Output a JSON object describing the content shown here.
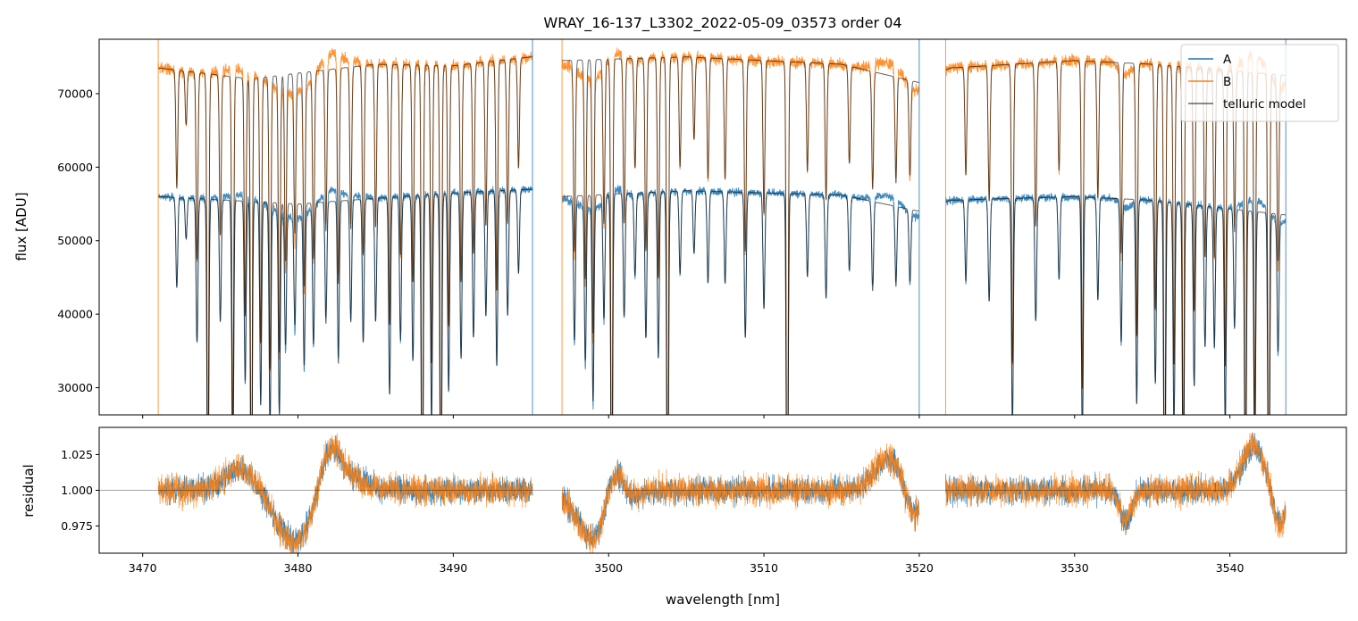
{
  "chart_data": [
    {
      "type": "line",
      "panel": "spectrum",
      "title": "WRAY_16-137_L3302_2022-05-09_03573  order 04",
      "xlabel": "",
      "ylabel": "flux [ADU]",
      "xlim": [
        3467.2,
        3547.5
      ],
      "ylim": [
        26300,
        77400
      ],
      "x_ticks": [
        3470,
        3480,
        3490,
        3500,
        3510,
        3520,
        3530,
        3540
      ],
      "y_ticks": [
        30000,
        40000,
        50000,
        60000,
        70000
      ],
      "y_tick_labels": [
        "30000",
        "40000",
        "50000",
        "60000",
        "70000"
      ],
      "grid": false,
      "legend_position": "top-right",
      "legend": [
        "A",
        "B",
        "telluric model"
      ],
      "segments_nm": [
        [
          3471.0,
          3495.1
        ],
        [
          3497.0,
          3520.0
        ],
        [
          3521.7,
          3543.6
        ]
      ],
      "continuum": {
        "A": {
          "x": [
            3471,
            3480,
            3490,
            3495,
            3497,
            3505,
            3515,
            3520,
            3522,
            3530,
            3535,
            3543.6
          ],
          "y": [
            56000,
            55000,
            56500,
            57000,
            56000,
            56800,
            56200,
            54000,
            55500,
            56000,
            55500,
            53500
          ]
        },
        "B": {
          "x": [
            3471,
            3477,
            3480,
            3485,
            3490,
            3495,
            3497,
            3505,
            3515,
            3520,
            3522,
            3530,
            3535,
            3543.6
          ],
          "y": [
            73500,
            72000,
            72800,
            74000,
            73800,
            75000,
            74500,
            75000,
            74000,
            71500,
            73500,
            74500,
            74000,
            72500
          ]
        }
      },
      "absorption_lines_nm": [
        [
          3472.2,
          0.22
        ],
        [
          3472.8,
          0.1
        ],
        [
          3473.5,
          0.35
        ],
        [
          3474.2,
          0.8
        ],
        [
          3475.0,
          0.3
        ],
        [
          3475.8,
          0.7
        ],
        [
          3476.6,
          0.45
        ],
        [
          3477.0,
          0.85
        ],
        [
          3477.6,
          0.5
        ],
        [
          3478.2,
          0.55
        ],
        [
          3478.8,
          0.52
        ],
        [
          3479.2,
          0.35
        ],
        [
          3479.8,
          0.3
        ],
        [
          3480.4,
          0.4
        ],
        [
          3481.0,
          0.35
        ],
        [
          3481.8,
          0.3
        ],
        [
          3482.6,
          0.4
        ],
        [
          3483.4,
          0.3
        ],
        [
          3484.2,
          0.35
        ],
        [
          3485.0,
          0.3
        ],
        [
          3485.9,
          0.48
        ],
        [
          3486.6,
          0.35
        ],
        [
          3487.4,
          0.4
        ],
        [
          3488.0,
          0.9
        ],
        [
          3488.6,
          0.55
        ],
        [
          3489.2,
          0.85
        ],
        [
          3489.7,
          0.48
        ],
        [
          3490.5,
          0.4
        ],
        [
          3491.3,
          0.35
        ],
        [
          3492.1,
          0.3
        ],
        [
          3492.8,
          0.42
        ],
        [
          3493.5,
          0.3
        ],
        [
          3494.2,
          0.2
        ],
        [
          3497.8,
          0.35
        ],
        [
          3498.5,
          0.4
        ],
        [
          3499.0,
          0.5
        ],
        [
          3499.7,
          0.3
        ],
        [
          3500.2,
          0.85
        ],
        [
          3501.0,
          0.3
        ],
        [
          3501.7,
          0.2
        ],
        [
          3502.4,
          0.35
        ],
        [
          3503.2,
          0.4
        ],
        [
          3503.8,
          0.9
        ],
        [
          3504.6,
          0.2
        ],
        [
          3505.5,
          0.15
        ],
        [
          3506.4,
          0.22
        ],
        [
          3507.5,
          0.22
        ],
        [
          3508.8,
          0.35
        ],
        [
          3510.0,
          0.28
        ],
        [
          3511.5,
          0.95
        ],
        [
          3512.8,
          0.2
        ],
        [
          3514.0,
          0.25
        ],
        [
          3515.5,
          0.18
        ],
        [
          3517.0,
          0.22
        ],
        [
          3518.5,
          0.2
        ],
        [
          3519.4,
          0.18
        ],
        [
          3523.0,
          0.2
        ],
        [
          3524.5,
          0.25
        ],
        [
          3526.0,
          0.55
        ],
        [
          3527.5,
          0.3
        ],
        [
          3529.0,
          0.2
        ],
        [
          3530.5,
          0.6
        ],
        [
          3531.5,
          0.25
        ],
        [
          3533.0,
          0.35
        ],
        [
          3534.0,
          0.5
        ],
        [
          3535.2,
          0.45
        ],
        [
          3535.8,
          0.9
        ],
        [
          3536.4,
          0.55
        ],
        [
          3537.0,
          0.75
        ],
        [
          3537.7,
          0.45
        ],
        [
          3538.4,
          0.35
        ],
        [
          3539.0,
          0.35
        ],
        [
          3539.7,
          0.55
        ],
        [
          3540.3,
          0.3
        ],
        [
          3541.0,
          0.8
        ],
        [
          3541.6,
          0.65
        ],
        [
          3542.5,
          0.9
        ],
        [
          3543.1,
          0.35
        ]
      ],
      "series": [
        {
          "name": "A",
          "color": "#1f77b4"
        },
        {
          "name": "B",
          "color": "#ff7f0e"
        },
        {
          "name": "telluric model",
          "color": "#000000"
        }
      ]
    },
    {
      "type": "line",
      "panel": "residual",
      "xlabel": "wavelength [nm]",
      "ylabel": "residual",
      "xlim": [
        3467.2,
        3547.5
      ],
      "ylim": [
        0.956,
        1.044
      ],
      "x_ticks": [
        3470,
        3480,
        3490,
        3500,
        3510,
        3520,
        3530,
        3540
      ],
      "x_tick_labels": [
        "3470",
        "3480",
        "3490",
        "3500",
        "3510",
        "3520",
        "3530",
        "3540"
      ],
      "y_ticks": [
        0.975,
        1.0,
        1.025
      ],
      "y_tick_labels": [
        "0.975",
        "1.000",
        "1.025"
      ],
      "reference_line": 1.0,
      "grid": false,
      "residual_bumps_nm": [
        [
          3476.5,
          0.015,
          1.2
        ],
        [
          3479.8,
          -0.035,
          1.4
        ],
        [
          3482.0,
          0.035,
          0.7
        ],
        [
          3483.5,
          0.008,
          1.0
        ],
        [
          3499.3,
          -0.038,
          1.2
        ],
        [
          3500.3,
          0.035,
          0.6
        ],
        [
          3518.0,
          0.022,
          0.9
        ],
        [
          3519.6,
          -0.02,
          0.5
        ],
        [
          3533.3,
          -0.02,
          0.4
        ],
        [
          3541.5,
          0.03,
          0.7
        ],
        [
          3543.2,
          -0.025,
          0.4
        ]
      ],
      "series": [
        {
          "name": "A",
          "color": "#1f77b4"
        },
        {
          "name": "B",
          "color": "#ff7f0e"
        }
      ]
    }
  ]
}
